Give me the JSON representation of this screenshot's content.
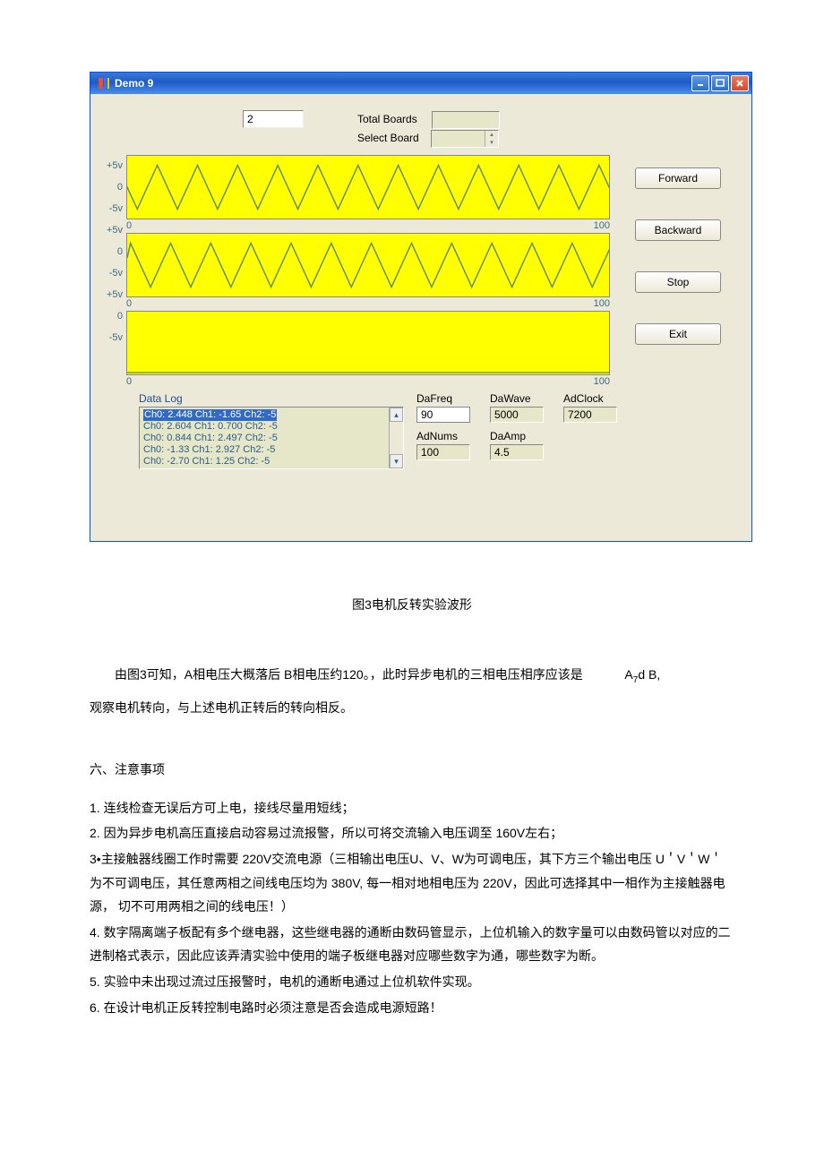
{
  "window": {
    "title": "Demo 9",
    "background": "#ece9d8",
    "titlebar_color": "#2563cf"
  },
  "top": {
    "input_value": "2",
    "total_boards_label": "Total Boards",
    "select_board_label": "Select Board",
    "select_board_value": ""
  },
  "charts": {
    "y_ticks": [
      "+5v",
      "0",
      "-5v"
    ],
    "x_min": "0",
    "x_max": "100",
    "chart_bg": "#ffff00",
    "wave_color": "#648b74",
    "series": [
      {
        "kind": "triangle",
        "amplitude": 0.7,
        "periods": 12,
        "phase": 0.5
      },
      {
        "kind": "triangle",
        "amplitude": 0.7,
        "periods": 12,
        "phase": 0.167
      },
      {
        "kind": "flat",
        "amplitude": 0,
        "periods": 0,
        "phase": 0
      }
    ]
  },
  "buttons": {
    "forward": "Forward",
    "backward": "Backward",
    "stop": "Stop",
    "exit": "Exit"
  },
  "datalog": {
    "label": "Data Log",
    "rows": [
      "Ch0: 2.448  Ch1: -1.65  Ch2: -5",
      "Ch0: 2.604  Ch1: 0.700  Ch2: -5",
      "Ch0: 0.844  Ch1: 2.497  Ch2: -5",
      "Ch0: -1.33  Ch1: 2.927  Ch2: -5",
      "Ch0: -2.70  Ch1: 1.25  Ch2: -5"
    ]
  },
  "params": {
    "dafreq_label": "DaFreq",
    "dafreq_value": "90",
    "dawave_label": "DaWave",
    "dawave_value": "5000",
    "adclock_label": "AdClock",
    "adclock_value": "7200",
    "adnums_label": "AdNums",
    "adnums_value": "100",
    "daamp_label": "DaAmp",
    "daamp_value": "4.5"
  },
  "figure_caption": "图3电机反转实验波形",
  "paragraph": {
    "line1_a": "由图3可知，A相电压大概落后 B相电压约120。，此时异步电机的三相电压相序应该是",
    "line1_b": "A",
    "line1_sub": "7",
    "line1_c": "d B,",
    "line2": "观察电机转向，与上述电机正转后的转向相反。"
  },
  "section_heading": "六、注意事项",
  "notes": [
    "1.  连线检查无误后方可上电，接线尽量用短线；",
    "2.  因为异步电机高压直接启动容易过流报警，所以可将交流输入电压调至        160V左右；",
    "3•主接触器线圈工作时需要 220V交流电源（三相输出电压U、V、W为可调电压，其下方三个输出电压  U＇V＇W＇为不可调电压，其任意两相之间线电压均为          380V, 每一相对地相电压为 220V，因此可选择其中一相作为主接触器电源，   切不可用两相之间的线电压！）",
    "4.  数字隔离端子板配有多个继电器，这些继电器的通断由数码管显示，上位机输入的数字量可以由数码管以对应的二进制格式表示，因此应该弄清实验中使用的端子板继电器对应哪些数字为通，哪些数字为断。",
    "5.  实验中未出现过流过压报警时，电机的通断电通过上位机软件实现。",
    "6.  在设计电机正反转控制电路时必须注意是否会造成电源短路！"
  ]
}
